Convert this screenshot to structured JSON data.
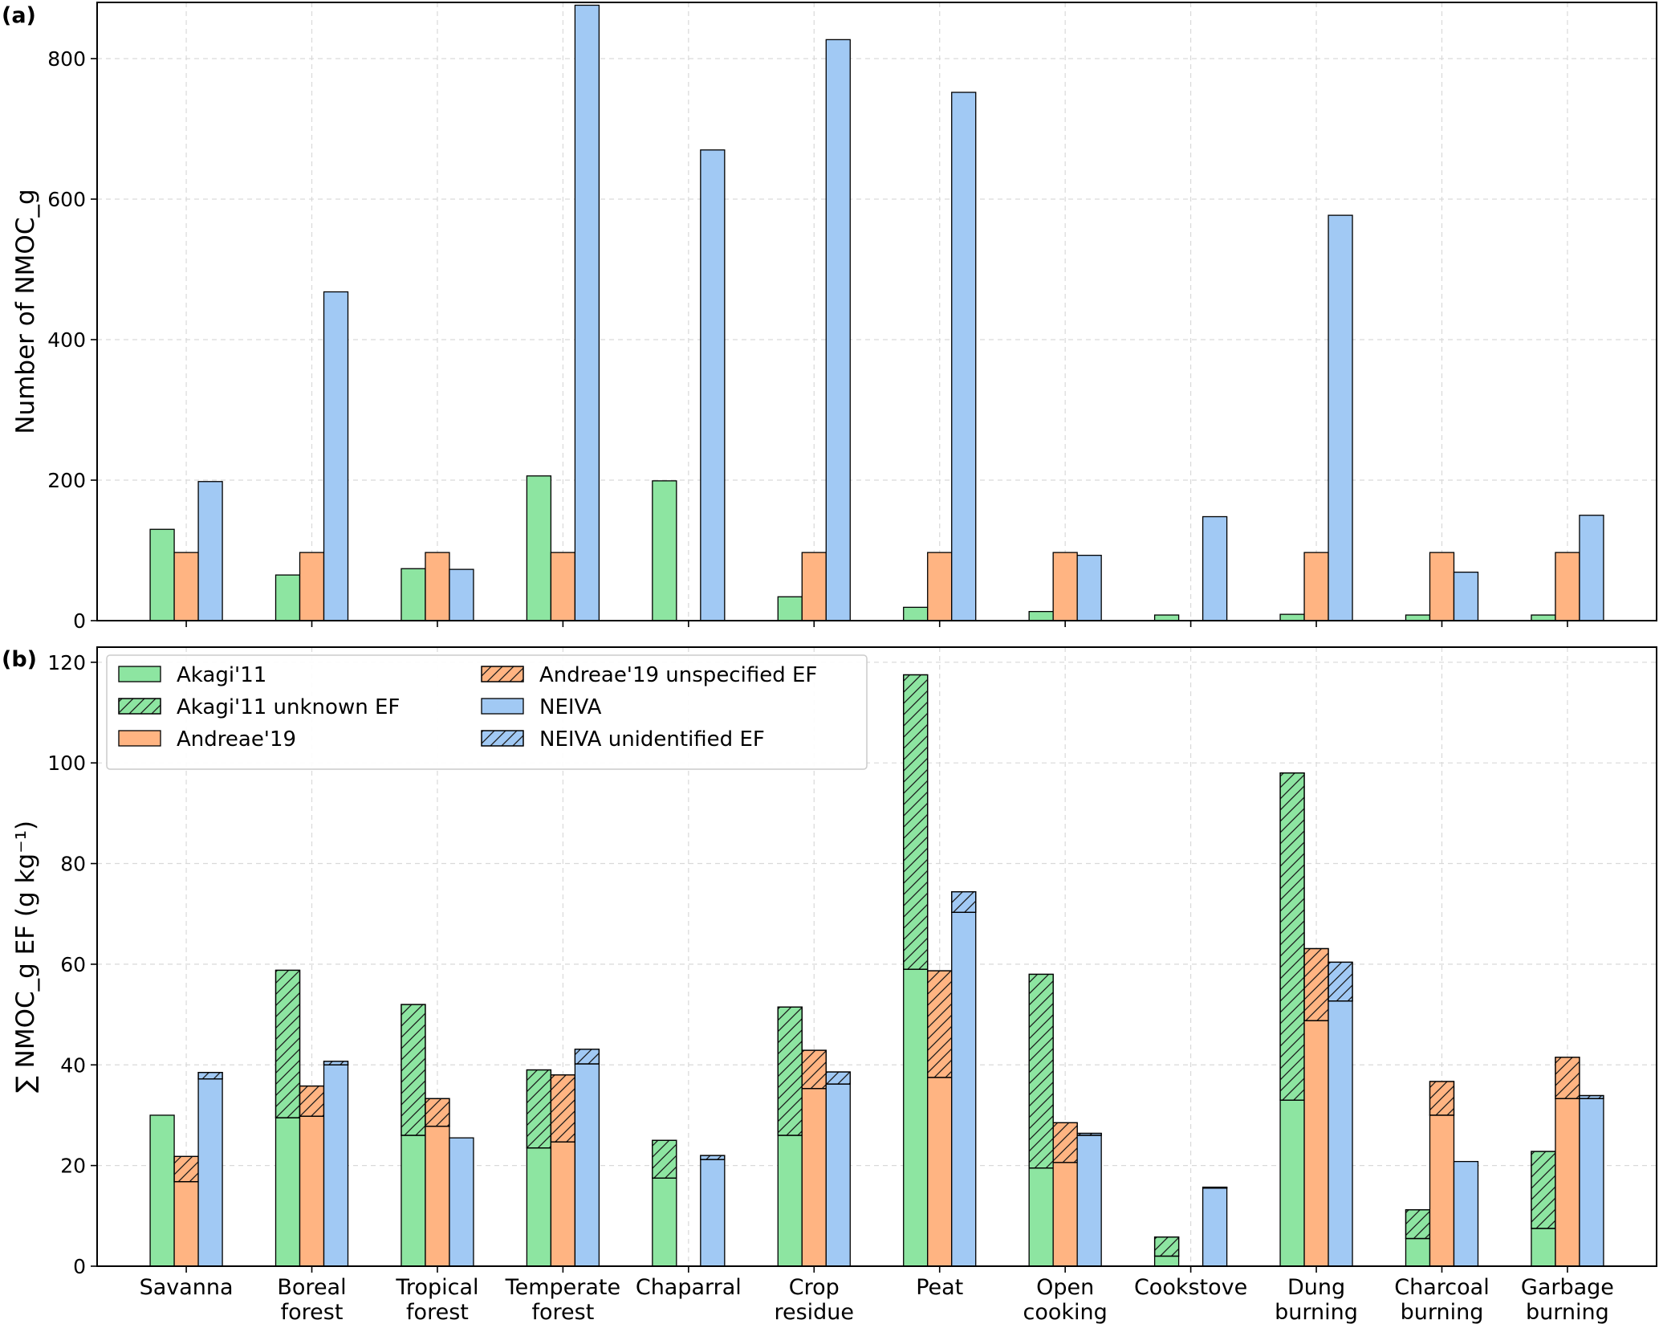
{
  "chart_data": [
    {
      "panel_label": "(a)",
      "type": "bar",
      "ylabel": "Number of NMOC_g",
      "ylim": [
        0,
        880
      ],
      "yticks": [
        0,
        200,
        400,
        600,
        800
      ],
      "grid": true,
      "categories": [
        "Savanna",
        "Boreal forest",
        "Tropical forest",
        "Temperate forest",
        "Chaparral",
        "Crop residue",
        "Peat",
        "Open cooking",
        "Cookstove",
        "Dung burning",
        "Charcoal burning",
        "Garbage burning"
      ],
      "series": [
        {
          "name": "Akagi'11",
          "color": "#8de5a1",
          "values": [
            130,
            65,
            74,
            206,
            199,
            34,
            19,
            13,
            8,
            9,
            8,
            8
          ]
        },
        {
          "name": "Andreae'19",
          "color": "#ffb482",
          "values": [
            97,
            97,
            97,
            97,
            null,
            97,
            97,
            97,
            null,
            97,
            97,
            97
          ]
        },
        {
          "name": "NEIVA",
          "color": "#a1c9f4",
          "values": [
            198,
            468,
            73,
            876,
            670,
            827,
            752,
            93,
            148,
            577,
            69,
            150
          ]
        }
      ]
    },
    {
      "panel_label": "(b)",
      "type": "bar",
      "stacked": true,
      "ylabel": "∑ NMOC_g EF (g kg⁻¹)",
      "ylim": [
        0,
        123
      ],
      "yticks": [
        0,
        20,
        40,
        60,
        80,
        100,
        120
      ],
      "grid": true,
      "legend_position": "top-left",
      "categories": [
        "Savanna",
        "Boreal forest",
        "Tropical forest",
        "Temperate forest",
        "Chaparral",
        "Crop residue",
        "Peat",
        "Open cooking",
        "Cookstove",
        "Dung burning",
        "Charcoal burning",
        "Garbage burning"
      ],
      "series": [
        {
          "name": "Akagi'11",
          "color": "#8de5a1",
          "hatch": false,
          "group": "Akagi'11",
          "values": [
            30,
            29.5,
            26,
            23.5,
            17.5,
            26,
            59,
            19.5,
            2,
            33,
            5.5,
            7.5
          ]
        },
        {
          "name": "Akagi'11 unknown EF",
          "color": "#8de5a1",
          "hatch": true,
          "group": "Akagi'11",
          "values": [
            0,
            29.3,
            26,
            15.5,
            7.5,
            25.5,
            58.5,
            38.5,
            3.8,
            65,
            5.7,
            15.3
          ]
        },
        {
          "name": "Andreae'19",
          "color": "#ffb482",
          "hatch": false,
          "group": "Andreae'19",
          "values": [
            16.8,
            29.8,
            27.8,
            24.7,
            0,
            35.3,
            37.5,
            20.6,
            0,
            48.8,
            30,
            33.3
          ]
        },
        {
          "name": "Andreae'19 unspecified EF",
          "color": "#ffb482",
          "hatch": true,
          "group": "Andreae'19",
          "values": [
            5,
            6,
            5.5,
            13.3,
            0,
            7.6,
            21.2,
            7.9,
            0,
            14.3,
            6.7,
            8.2
          ]
        },
        {
          "name": "NEIVA",
          "color": "#a1c9f4",
          "hatch": false,
          "group": "NEIVA",
          "values": [
            37.2,
            40,
            25.5,
            40.2,
            21.2,
            36.2,
            70.3,
            26,
            15.5,
            52.7,
            20.8,
            33.3
          ]
        },
        {
          "name": "NEIVA unidentified EF",
          "color": "#a1c9f4",
          "hatch": true,
          "group": "NEIVA",
          "values": [
            1.3,
            0.7,
            0,
            2.9,
            0.8,
            2.4,
            4.1,
            0.4,
            0.2,
            7.7,
            0,
            0.6
          ]
        }
      ],
      "legend": {
        "entries": [
          "Akagi'11",
          "Andreae'19 unspecified EF",
          "Akagi'11 unknown EF",
          "NEIVA",
          "Andreae'19",
          "NEIVA unidentified EF"
        ]
      }
    }
  ],
  "x_tick_labels": [
    [
      "Savanna"
    ],
    [
      "Boreal",
      "forest"
    ],
    [
      "Tropical",
      "forest"
    ],
    [
      "Temperate",
      "forest"
    ],
    [
      "Chaparral"
    ],
    [
      "Crop",
      "residue"
    ],
    [
      "Peat"
    ],
    [
      "Open",
      "cooking"
    ],
    [
      "Cookstove"
    ],
    [
      "Dung",
      "burning"
    ],
    [
      "Charcoal",
      "burning"
    ],
    [
      "Garbage",
      "burning"
    ]
  ]
}
